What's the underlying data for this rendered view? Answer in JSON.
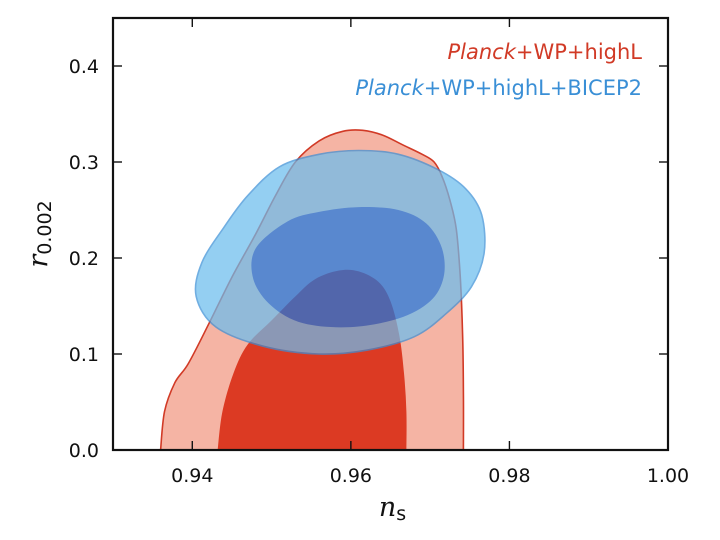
{
  "chart_data": {
    "type": "contour",
    "xlabel": {
      "main": "n",
      "sub": "s"
    },
    "ylabel": {
      "main": "r",
      "sub": "0.002"
    },
    "xlim": [
      0.93,
      1.0
    ],
    "ylim": [
      0.0,
      0.45
    ],
    "xticks": [
      {
        "value": 0.94,
        "label": "0.94"
      },
      {
        "value": 0.96,
        "label": "0.96"
      },
      {
        "value": 0.98,
        "label": "0.98"
      },
      {
        "value": 1.0,
        "label": "1.00"
      }
    ],
    "yticks": [
      {
        "value": 0.0,
        "label": "0.0"
      },
      {
        "value": 0.1,
        "label": "0.1"
      },
      {
        "value": 0.2,
        "label": "0.2"
      },
      {
        "value": 0.3,
        "label": "0.3"
      },
      {
        "value": 0.4,
        "label": "0.4"
      }
    ],
    "grid": false,
    "legend_position": "top-right",
    "series": [
      {
        "legend_parts": [
          {
            "text": "Planck",
            "italic": true
          },
          {
            "text": "+WP+highL",
            "italic": false
          }
        ],
        "color": "#d13a26",
        "outer_fill": "#f5b4a4",
        "inner_fill": "#dc3a23",
        "opacity": 1.0,
        "outer": [
          [
            0.936,
            0.0
          ],
          [
            0.9365,
            0.04
          ],
          [
            0.9378,
            0.07
          ],
          [
            0.9395,
            0.09
          ],
          [
            0.942,
            0.13
          ],
          [
            0.945,
            0.18
          ],
          [
            0.948,
            0.225
          ],
          [
            0.9505,
            0.265
          ],
          [
            0.953,
            0.3
          ],
          [
            0.956,
            0.322
          ],
          [
            0.959,
            0.332
          ],
          [
            0.9615,
            0.333
          ],
          [
            0.964,
            0.328
          ],
          [
            0.9665,
            0.318
          ],
          [
            0.969,
            0.308
          ],
          [
            0.9705,
            0.3
          ],
          [
            0.9715,
            0.285
          ],
          [
            0.9725,
            0.26
          ],
          [
            0.9733,
            0.23
          ],
          [
            0.9738,
            0.18
          ],
          [
            0.9741,
            0.12
          ],
          [
            0.9742,
            0.06
          ],
          [
            0.9742,
            0.0
          ]
        ],
        "inner": [
          [
            0.9432,
            0.0
          ],
          [
            0.9438,
            0.04
          ],
          [
            0.9452,
            0.08
          ],
          [
            0.947,
            0.11
          ],
          [
            0.95,
            0.135
          ],
          [
            0.953,
            0.16
          ],
          [
            0.9555,
            0.178
          ],
          [
            0.9585,
            0.187
          ],
          [
            0.961,
            0.186
          ],
          [
            0.9635,
            0.175
          ],
          [
            0.965,
            0.155
          ],
          [
            0.9661,
            0.12
          ],
          [
            0.9667,
            0.08
          ],
          [
            0.967,
            0.04
          ],
          [
            0.967,
            0.0
          ]
        ]
      },
      {
        "legend_parts": [
          {
            "text": "Planck",
            "italic": true
          },
          {
            "text": "+WP+highL+BICEP2",
            "italic": false
          }
        ],
        "color": "#3a8fd6",
        "outer_fill": "#6cbdee",
        "inner_fill": "#1e78e0",
        "opacity": 0.72,
        "outer": [
          [
            0.951,
            0.295
          ],
          [
            0.956,
            0.308
          ],
          [
            0.961,
            0.312
          ],
          [
            0.966,
            0.308
          ],
          [
            0.971,
            0.292
          ],
          [
            0.9745,
            0.272
          ],
          [
            0.9765,
            0.245
          ],
          [
            0.9768,
            0.205
          ],
          [
            0.9752,
            0.17
          ],
          [
            0.972,
            0.142
          ],
          [
            0.968,
            0.118
          ],
          [
            0.962,
            0.104
          ],
          [
            0.956,
            0.1
          ],
          [
            0.949,
            0.108
          ],
          [
            0.943,
            0.128
          ],
          [
            0.9405,
            0.16
          ],
          [
            0.9412,
            0.195
          ],
          [
            0.944,
            0.232
          ],
          [
            0.947,
            0.265
          ]
        ],
        "inner": [
          [
            0.952,
            0.238
          ],
          [
            0.956,
            0.248
          ],
          [
            0.961,
            0.253
          ],
          [
            0.966,
            0.25
          ],
          [
            0.9695,
            0.236
          ],
          [
            0.9715,
            0.21
          ],
          [
            0.9717,
            0.18
          ],
          [
            0.97,
            0.155
          ],
          [
            0.966,
            0.137
          ],
          [
            0.96,
            0.128
          ],
          [
            0.954,
            0.132
          ],
          [
            0.95,
            0.15
          ],
          [
            0.9477,
            0.178
          ],
          [
            0.948,
            0.21
          ]
        ]
      }
    ]
  }
}
